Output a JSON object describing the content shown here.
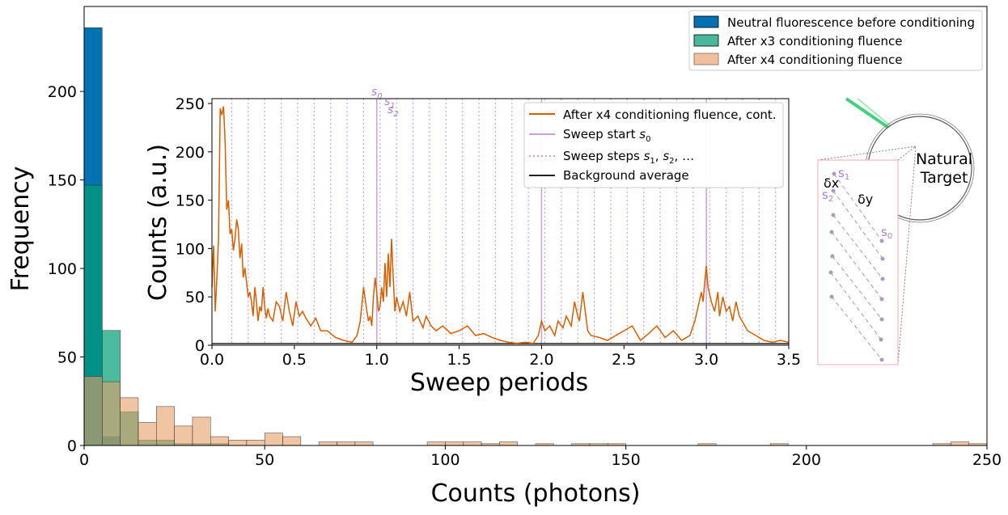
{
  "chart_data": [
    {
      "type": "bar",
      "xlabel": "Counts (photons)",
      "ylabel": "Frequency",
      "xlim": [
        0,
        250
      ],
      "ylim": [
        0,
        248
      ],
      "xticks": [
        0,
        50,
        100,
        150,
        200,
        250
      ],
      "yticks": [
        0,
        50,
        100,
        150,
        200
      ],
      "bin_width": 5,
      "grid": false,
      "legend_position": "top-right",
      "series": [
        {
          "name": "Neutral fluorescence before conditioning",
          "color": "#0072b2",
          "bins": [
            [
              0,
              236
            ],
            [
              5,
              5
            ]
          ]
        },
        {
          "name": "After x3 conditioning fluence",
          "color": "#009e73",
          "bins": [
            [
              0,
              147
            ],
            [
              5,
              65
            ],
            [
              10,
              19
            ],
            [
              15,
              3
            ],
            [
              20,
              3
            ],
            [
              25,
              1
            ],
            [
              30,
              1
            ],
            [
              35,
              1
            ]
          ]
        },
        {
          "name": "After x4 conditioning fluence",
          "color": "#e69f68",
          "bins": [
            [
              0,
              39
            ],
            [
              5,
              36
            ],
            [
              10,
              27
            ],
            [
              15,
              13
            ],
            [
              20,
              22
            ],
            [
              25,
              11
            ],
            [
              30,
              16
            ],
            [
              35,
              5
            ],
            [
              40,
              3
            ],
            [
              45,
              3
            ],
            [
              50,
              7
            ],
            [
              55,
              5
            ],
            [
              65,
              2
            ],
            [
              70,
              2
            ],
            [
              75,
              2
            ],
            [
              95,
              2
            ],
            [
              100,
              2
            ],
            [
              105,
              2
            ],
            [
              110,
              1
            ],
            [
              115,
              2
            ],
            [
              125,
              1
            ],
            [
              135,
              1
            ],
            [
              140,
              1
            ],
            [
              145,
              1
            ],
            [
              170,
              1
            ],
            [
              190,
              1
            ],
            [
              235,
              1
            ],
            [
              240,
              2
            ],
            [
              245,
              1
            ]
          ]
        }
      ]
    },
    {
      "type": "line",
      "xlabel": "Sweep periods",
      "ylabel": "Counts (a.u.)",
      "xlim": [
        0,
        3.5
      ],
      "ylim": [
        0,
        255
      ],
      "xticks": [
        0.0,
        0.5,
        1.0,
        1.5,
        2.0,
        2.5,
        3.0,
        3.5
      ],
      "yticks": [
        0,
        50,
        100,
        150,
        200,
        250
      ],
      "legend_position": "top-right",
      "series": [
        {
          "name": "After x4 conditioning fluence, cont.",
          "color": "#d55e00",
          "x": [
            0.0,
            0.01,
            0.02,
            0.03,
            0.04,
            0.05,
            0.06,
            0.07,
            0.08,
            0.09,
            0.1,
            0.11,
            0.12,
            0.13,
            0.14,
            0.15,
            0.16,
            0.17,
            0.18,
            0.19,
            0.2,
            0.21,
            0.22,
            0.23,
            0.24,
            0.25,
            0.26,
            0.27,
            0.28,
            0.29,
            0.3,
            0.31,
            0.32,
            0.33,
            0.34,
            0.35,
            0.37,
            0.39,
            0.41,
            0.43,
            0.45,
            0.47,
            0.49,
            0.51,
            0.53,
            0.55,
            0.57,
            0.6,
            0.63,
            0.66,
            0.7,
            0.75,
            0.8,
            0.85,
            0.88,
            0.9,
            0.92,
            0.94,
            0.95,
            0.96,
            0.97,
            0.98,
            0.99,
            1.0,
            1.01,
            1.02,
            1.03,
            1.04,
            1.05,
            1.06,
            1.07,
            1.08,
            1.09,
            1.1,
            1.11,
            1.12,
            1.14,
            1.16,
            1.18,
            1.2,
            1.22,
            1.25,
            1.28,
            1.3,
            1.33,
            1.36,
            1.4,
            1.45,
            1.5,
            1.55,
            1.6,
            1.65,
            1.7,
            1.75,
            1.8,
            1.85,
            1.9,
            1.95,
            1.98,
            2.0,
            2.02,
            2.05,
            2.08,
            2.1,
            2.13,
            2.15,
            2.18,
            2.2,
            2.22,
            2.23,
            2.25,
            2.28,
            2.3,
            2.35,
            2.4,
            2.45,
            2.5,
            2.55,
            2.6,
            2.65,
            2.7,
            2.75,
            2.8,
            2.85,
            2.9,
            2.93,
            2.95,
            2.97,
            2.98,
            2.99,
            3.0,
            3.01,
            3.03,
            3.05,
            3.07,
            3.08,
            3.1,
            3.12,
            3.14,
            3.16,
            3.18,
            3.2,
            3.25,
            3.3,
            3.35,
            3.4,
            3.45,
            3.5
          ],
          "y": [
            60,
            103,
            35,
            70,
            110,
            245,
            238,
            247,
            210,
            140,
            150,
            115,
            120,
            98,
            110,
            130,
            120,
            90,
            105,
            70,
            80,
            65,
            50,
            55,
            45,
            30,
            60,
            45,
            25,
            40,
            35,
            60,
            40,
            28,
            38,
            30,
            25,
            45,
            40,
            25,
            55,
            35,
            20,
            45,
            30,
            35,
            28,
            20,
            28,
            15,
            15,
            8,
            5,
            3,
            10,
            25,
            60,
            35,
            25,
            30,
            20,
            50,
            70,
            55,
            35,
            40,
            60,
            45,
            85,
            50,
            95,
            60,
            110,
            70,
            35,
            50,
            35,
            45,
            30,
            55,
            25,
            30,
            18,
            30,
            20,
            15,
            20,
            12,
            15,
            20,
            10,
            12,
            8,
            5,
            3,
            2,
            3,
            2,
            10,
            25,
            15,
            20,
            10,
            25,
            18,
            30,
            20,
            45,
            30,
            25,
            55,
            15,
            10,
            8,
            5,
            10,
            15,
            20,
            5,
            12,
            20,
            8,
            15,
            5,
            10,
            25,
            40,
            55,
            45,
            65,
            82,
            60,
            45,
            35,
            55,
            30,
            50,
            35,
            40,
            25,
            45,
            30,
            15,
            10,
            5,
            3,
            5,
            3
          ]
        },
        {
          "name": "Sweep start s0",
          "color": "#c6a3dd",
          "x": [
            1.0,
            2.0,
            3.0
          ]
        },
        {
          "name": "Sweep steps s1, s2, ...",
          "color": "#c6a3dd"
        },
        {
          "name": "Background average",
          "color": "#222222",
          "value": 2
        }
      ],
      "annotations": [
        "s0",
        "s1",
        "s2"
      ]
    }
  ],
  "text": {
    "outer_xlabel": "Counts (photons)",
    "outer_ylabel": "Frequency",
    "inset_xlabel": "Sweep periods",
    "inset_ylabel": "Counts (a.u.)",
    "outer_xtick_labels": [
      "0",
      "50",
      "100",
      "150",
      "200",
      "250"
    ],
    "outer_ytick_labels": [
      "0",
      "50",
      "100",
      "150",
      "200"
    ],
    "inset_xtick_labels": [
      "0.0",
      "0.5",
      "1.0",
      "1.5",
      "2.0",
      "2.5",
      "3.0",
      "3.5"
    ],
    "inset_ytick_labels": [
      "0",
      "50",
      "100",
      "150",
      "200",
      "250"
    ],
    "outer_legend": [
      "Neutral fluorescence before conditioning",
      "After x3 conditioning fluence",
      "After x4 conditioning fluence"
    ],
    "inset_legend": {
      "item1": "After x4 conditioning fluence, cont.",
      "item2_prefix": "Sweep start ",
      "item3_prefix": "Sweep steps ",
      "item3_suffix": ", …",
      "item4": "Background average"
    },
    "s0": "s",
    "s0_sub": "0",
    "s1": "s",
    "s1_sub": "1",
    "s2": "s",
    "s2_sub": "2",
    "diagram": {
      "target_line1": "Natural",
      "target_line2": "Target",
      "dx": "δx",
      "dy": "δy",
      "s1": "s",
      "s1_sub": "1",
      "s2": "s",
      "s2_sub": "2",
      "s0": "s",
      "s0_sub": "0"
    }
  },
  "colors": {
    "blue": "#0072b2",
    "green": "#009e73",
    "orange_fill": "#e69f68",
    "orange_line": "#d55e00",
    "purple": "#a97fd0",
    "purple_light": "#c6a3dd",
    "pink_box": "#f0a8b0",
    "laser_green": "#2ecc71"
  }
}
